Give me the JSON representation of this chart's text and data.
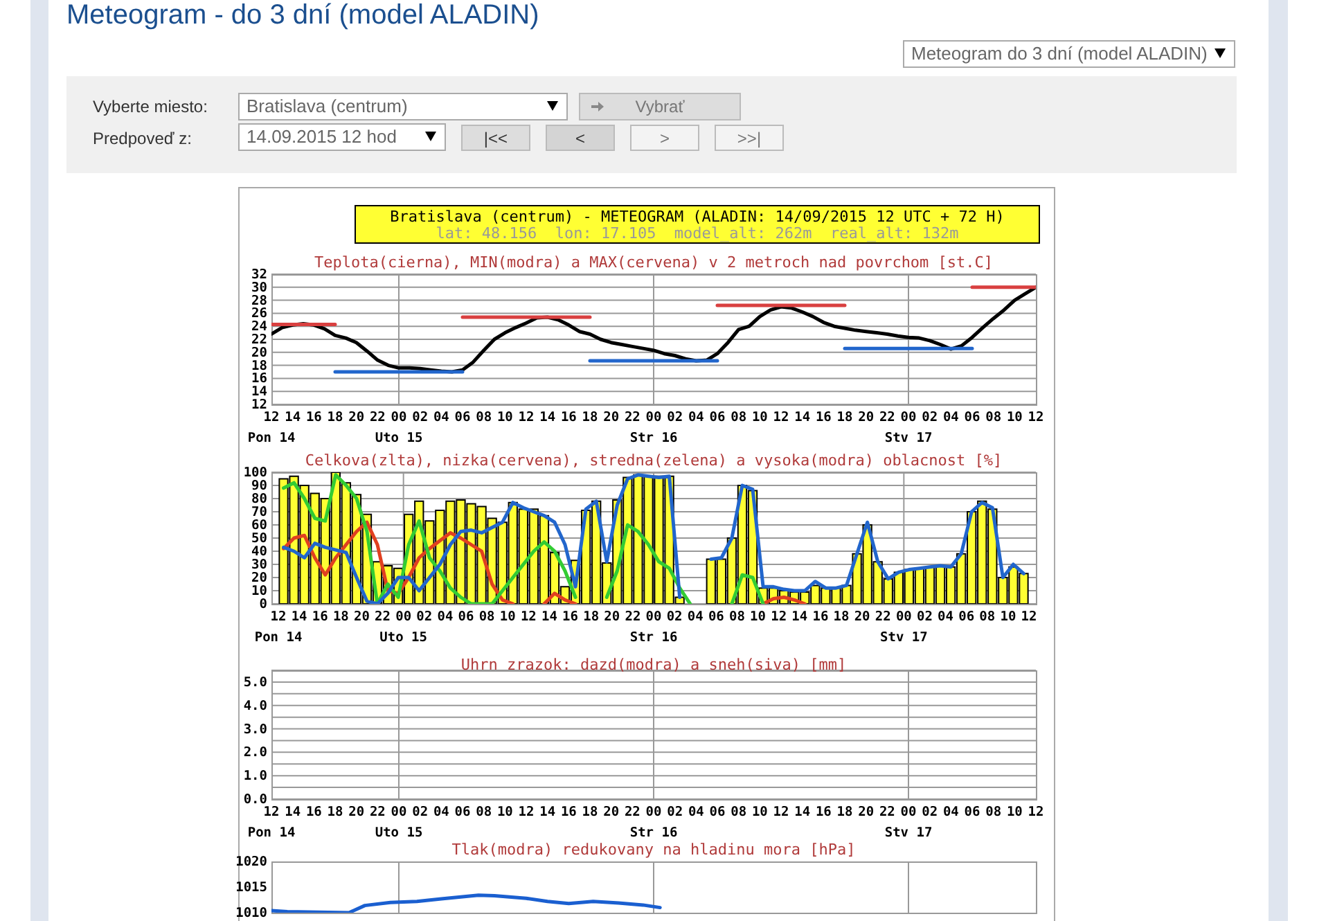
{
  "chart_data": [
    {
      "type": "other",
      "title": "Meteogram - do 3 dní (model ALADIN)",
      "annotations": [
        "Meteogram do 3 dní (model ALADIN)",
        "Vyberte miesto:",
        "Bratislava (centrum)",
        "Vybrať",
        "Predpoveď z:",
        "14.09.2015 12 hod",
        "|<<",
        "<",
        ">",
        ">>|",
        "Bratislava (centrum) - METEOGRAM (ALADIN: 14/09/2015 12 UTC + 72 H)",
        "lat: 48.156  lon: 17.105  model_alt: 262m  real_alt: 132m"
      ]
    },
    {
      "type": "line",
      "title": "Teplota(cierna), MIN(modra) a MAX(cervena) v 2 metroch nad povrchom [st.C]",
      "x": [
        "2015-09-14T12:00",
        "2015-09-14T13:00",
        "2015-09-14T14:00",
        "2015-09-14T15:00",
        "2015-09-14T16:00",
        "2015-09-14T17:00",
        "2015-09-14T18:00",
        "2015-09-14T19:00",
        "2015-09-14T20:00",
        "2015-09-14T21:00",
        "2015-09-14T22:00",
        "2015-09-14T23:00",
        "2015-09-15T00:00",
        "2015-09-15T01:00",
        "2015-09-15T02:00",
        "2015-09-15T03:00",
        "2015-09-15T04:00",
        "2015-09-15T05:00",
        "2015-09-15T06:00",
        "2015-09-15T07:00",
        "2015-09-15T08:00",
        "2015-09-15T09:00",
        "2015-09-15T10:00",
        "2015-09-15T11:00",
        "2015-09-15T12:00",
        "2015-09-15T13:00",
        "2015-09-15T14:00",
        "2015-09-15T15:00",
        "2015-09-15T16:00",
        "2015-09-15T17:00",
        "2015-09-15T18:00",
        "2015-09-15T19:00",
        "2015-09-15T20:00",
        "2015-09-15T21:00",
        "2015-09-15T22:00",
        "2015-09-15T23:00",
        "2015-09-16T00:00",
        "2015-09-16T01:00",
        "2015-09-16T02:00",
        "2015-09-16T03:00",
        "2015-09-16T04:00",
        "2015-09-16T05:00",
        "2015-09-16T06:00",
        "2015-09-16T07:00",
        "2015-09-16T08:00",
        "2015-09-16T09:00",
        "2015-09-16T10:00",
        "2015-09-16T11:00",
        "2015-09-16T12:00",
        "2015-09-16T13:00",
        "2015-09-16T14:00",
        "2015-09-16T15:00",
        "2015-09-16T16:00",
        "2015-09-16T17:00",
        "2015-09-16T18:00",
        "2015-09-16T19:00",
        "2015-09-16T20:00",
        "2015-09-16T21:00",
        "2015-09-16T22:00",
        "2015-09-16T23:00",
        "2015-09-17T00:00",
        "2015-09-17T01:00",
        "2015-09-17T02:00",
        "2015-09-17T03:00",
        "2015-09-17T04:00",
        "2015-09-17T05:00",
        "2015-09-17T06:00",
        "2015-09-17T07:00",
        "2015-09-17T08:00",
        "2015-09-17T09:00",
        "2015-09-17T10:00",
        "2015-09-17T11:00",
        "2015-09-17T12:00"
      ],
      "series": [
        {
          "color": "#000000",
          "values": [
            22.8,
            23.8,
            24.2,
            24.4,
            24.2,
            23.6,
            22.6,
            22.2,
            21.5,
            20.2,
            18.8,
            18.0,
            17.6,
            17.6,
            17.5,
            17.3,
            17.1,
            17.0,
            17.3,
            18.5,
            20.3,
            22.0,
            23.0,
            23.8,
            24.5,
            25.3,
            25.4,
            25.0,
            24.2,
            23.2,
            22.8,
            22.0,
            21.5,
            21.2,
            20.9,
            20.6,
            20.3,
            19.8,
            19.5,
            19.0,
            18.7,
            18.8,
            19.8,
            21.5,
            23.5,
            24.0,
            25.5,
            26.5,
            27.0,
            26.8,
            26.2,
            25.5,
            24.6,
            24.0,
            23.7,
            23.4,
            23.2,
            23.0,
            22.8,
            22.5,
            22.3,
            22.2,
            21.8,
            21.2,
            20.5,
            21.0,
            22.3,
            23.8,
            25.2,
            26.5,
            28.0,
            29.0,
            30.0
          ]
        },
        {
          "color": "#d94040",
          "x": [
            "2015-09-14T12:00",
            "2015-09-14T18:00",
            "2015-09-15T00:00",
            "2015-09-15T06:00",
            "2015-09-15T18:00",
            "2015-09-16T00:00",
            "2015-09-16T06:00",
            "2015-09-16T18:00",
            "2015-09-17T00:00",
            "2015-09-17T06:00",
            "2015-09-17T12:00"
          ],
          "values": [
            24.3,
            24.3,
            null,
            25.4,
            25.4,
            null,
            27.2,
            27.2,
            null,
            30.0,
            30.0
          ]
        },
        {
          "color": "#2266cc",
          "x": [
            "2015-09-14T18:00",
            "2015-09-15T06:00",
            "2015-09-15T12:00",
            "2015-09-15T18:00",
            "2015-09-16T06:00",
            "2015-09-16T12:00",
            "2015-09-16T18:00",
            "2015-09-17T06:00"
          ],
          "values": [
            17.0,
            17.0,
            null,
            18.7,
            18.7,
            null,
            20.6,
            20.6
          ]
        }
      ],
      "xlim": [
        "2015-09-14T12:00",
        "2015-09-17T12:00"
      ],
      "xticks": [
        {
          "value": "2015-09-14T12:00",
          "label": "12\nPon 14"
        },
        {
          "value": "2015-09-14T14:00",
          "label": "14"
        },
        {
          "value": "2015-09-14T16:00",
          "label": "16"
        },
        {
          "value": "2015-09-14T18:00",
          "label": "18"
        },
        {
          "value": "2015-09-14T20:00",
          "label": "20"
        },
        {
          "value": "2015-09-14T22:00",
          "label": "22"
        },
        {
          "value": "2015-09-15T00:00",
          "label": "00\nUto 15"
        },
        {
          "value": "2015-09-15T02:00",
          "label": "02"
        },
        {
          "value": "2015-09-15T04:00",
          "label": "04"
        },
        {
          "value": "2015-09-15T06:00",
          "label": "06"
        },
        {
          "value": "2015-09-15T08:00",
          "label": "08"
        },
        {
          "value": "2015-09-15T10:00",
          "label": "10"
        },
        {
          "value": "2015-09-15T12:00",
          "label": "12"
        },
        {
          "value": "2015-09-15T14:00",
          "label": "14"
        },
        {
          "value": "2015-09-15T16:00",
          "label": "16"
        },
        {
          "value": "2015-09-15T18:00",
          "label": "18"
        },
        {
          "value": "2015-09-15T20:00",
          "label": "20"
        },
        {
          "value": "2015-09-15T22:00",
          "label": "22"
        },
        {
          "value": "2015-09-16T00:00",
          "label": "00\nStr 16"
        },
        {
          "value": "2015-09-16T02:00",
          "label": "02"
        },
        {
          "value": "2015-09-16T04:00",
          "label": "04"
        },
        {
          "value": "2015-09-16T06:00",
          "label": "06"
        },
        {
          "value": "2015-09-16T08:00",
          "label": "08"
        },
        {
          "value": "2015-09-16T10:00",
          "label": "10"
        },
        {
          "value": "2015-09-16T12:00",
          "label": "12"
        },
        {
          "value": "2015-09-16T14:00",
          "label": "14"
        },
        {
          "value": "2015-09-16T16:00",
          "label": "16"
        },
        {
          "value": "2015-09-16T18:00",
          "label": "18"
        },
        {
          "value": "2015-09-16T20:00",
          "label": "20"
        },
        {
          "value": "2015-09-16T22:00",
          "label": "22"
        },
        {
          "value": "2015-09-17T00:00",
          "label": "00\nStv 17"
        },
        {
          "value": "2015-09-17T02:00",
          "label": "02"
        },
        {
          "value": "2015-09-17T04:00",
          "label": "04"
        },
        {
          "value": "2015-09-17T06:00",
          "label": "06"
        },
        {
          "value": "2015-09-17T08:00",
          "label": "08"
        },
        {
          "value": "2015-09-17T10:00",
          "label": "10"
        },
        {
          "value": "2015-09-17T12:00",
          "label": "12"
        }
      ],
      "ylim": [
        12,
        32
      ],
      "yticks": [
        12,
        14,
        16,
        18,
        20,
        22,
        24,
        26,
        28,
        30,
        32
      ],
      "grid": "y",
      "ref_lines": [
        {
          "axis": "x",
          "value": "2015-09-15T00:00",
          "color": "#999999"
        },
        {
          "axis": "x",
          "value": "2015-09-16T00:00",
          "color": "#999999"
        },
        {
          "axis": "x",
          "value": "2015-09-17T00:00",
          "color": "#999999"
        }
      ]
    },
    {
      "type": "bar",
      "title": "Celkova(zlta), nizka(cervena), stredna(zelena) a vysoka(modra) oblacnost [%]",
      "x": [
        "2015-09-14T12:30",
        "2015-09-14T13:30",
        "2015-09-14T14:30",
        "2015-09-14T15:30",
        "2015-09-14T16:30",
        "2015-09-14T17:30",
        "2015-09-14T18:30",
        "2015-09-14T19:30",
        "2015-09-14T20:30",
        "2015-09-14T21:30",
        "2015-09-14T22:30",
        "2015-09-14T23:30",
        "2015-09-15T00:30",
        "2015-09-15T01:30",
        "2015-09-15T02:30",
        "2015-09-15T03:30",
        "2015-09-15T04:30",
        "2015-09-15T05:30",
        "2015-09-15T06:30",
        "2015-09-15T07:30",
        "2015-09-15T08:30",
        "2015-09-15T09:30",
        "2015-09-15T10:30",
        "2015-09-15T11:30",
        "2015-09-15T12:30",
        "2015-09-15T13:30",
        "2015-09-15T14:30",
        "2015-09-15T15:30",
        "2015-09-15T16:30",
        "2015-09-15T17:30",
        "2015-09-15T18:30",
        "2015-09-15T19:30",
        "2015-09-15T20:30",
        "2015-09-15T21:30",
        "2015-09-15T22:30",
        "2015-09-15T23:30",
        "2015-09-16T00:30",
        "2015-09-16T01:30",
        "2015-09-16T02:30",
        "2015-09-16T03:30",
        "2015-09-16T04:30",
        "2015-09-16T05:30",
        "2015-09-16T06:30",
        "2015-09-16T07:30",
        "2015-09-16T08:30",
        "2015-09-16T09:30",
        "2015-09-16T10:30",
        "2015-09-16T11:30",
        "2015-09-16T12:30",
        "2015-09-16T13:30",
        "2015-09-16T14:30",
        "2015-09-16T15:30",
        "2015-09-16T16:30",
        "2015-09-16T17:30",
        "2015-09-16T18:30",
        "2015-09-16T19:30",
        "2015-09-16T20:30",
        "2015-09-16T21:30",
        "2015-09-16T22:30",
        "2015-09-16T23:30",
        "2015-09-17T00:30",
        "2015-09-17T01:30",
        "2015-09-17T02:30",
        "2015-09-17T03:30",
        "2015-09-17T04:30",
        "2015-09-17T05:30",
        "2015-09-17T06:30",
        "2015-09-17T07:30",
        "2015-09-17T08:30",
        "2015-09-17T09:30",
        "2015-09-17T10:30",
        "2015-09-17T11:30"
      ],
      "series": [
        {
          "color": "#ffff33",
          "values": [
            95,
            97,
            90,
            84,
            80,
            100,
            92,
            83,
            68,
            32,
            29,
            27,
            68,
            78,
            63,
            71,
            78,
            79,
            76,
            74,
            65,
            62,
            77,
            72,
            72,
            67,
            39,
            13,
            33,
            71,
            78,
            31,
            79,
            96,
            98,
            97,
            97,
            97,
            5,
            0,
            0,
            34,
            34,
            50,
            90,
            86,
            12,
            12,
            10,
            9,
            9,
            14,
            12,
            12,
            14,
            38,
            60,
            32,
            19,
            24,
            26,
            27,
            28,
            29,
            28,
            38,
            70,
            78,
            72,
            20,
            28,
            23
          ]
        },
        {
          "type": "line",
          "color": "#e04020",
          "values": [
            42,
            50,
            52,
            35,
            22,
            35,
            45,
            55,
            62,
            45,
            10,
            8,
            20,
            35,
            42,
            48,
            54,
            50,
            45,
            40,
            15,
            3,
            0,
            null,
            null,
            0,
            8,
            3,
            0,
            null,
            null,
            null,
            null,
            null,
            null,
            null,
            null,
            null,
            null,
            null,
            null,
            null,
            null,
            null,
            null,
            null,
            0,
            4,
            5,
            3,
            0,
            null,
            null,
            null,
            null,
            null,
            null,
            null,
            null,
            null,
            null,
            null,
            null,
            null,
            null,
            null,
            null,
            null,
            null,
            null,
            null,
            null
          ]
        },
        {
          "type": "line",
          "color": "#33cc33",
          "values": [
            88,
            92,
            80,
            65,
            63,
            98,
            90,
            80,
            55,
            0,
            15,
            5,
            45,
            63,
            35,
            25,
            12,
            5,
            0,
            0,
            0,
            10,
            20,
            30,
            40,
            47,
            40,
            25,
            5,
            null,
            null,
            5,
            25,
            60,
            55,
            45,
            32,
            27,
            12,
            0,
            null,
            null,
            null,
            0,
            22,
            20,
            0,
            null,
            null,
            null,
            null,
            null,
            null,
            null,
            null,
            null,
            null,
            null,
            null,
            null,
            null,
            null,
            null,
            null,
            null,
            null,
            null,
            null,
            null,
            null,
            null,
            null
          ]
        },
        {
          "type": "line",
          "color": "#2266cc",
          "values": [
            43,
            40,
            35,
            46,
            43,
            41,
            39,
            20,
            2,
            0,
            8,
            20,
            20,
            10,
            20,
            30,
            45,
            55,
            56,
            54,
            58,
            62,
            77,
            73,
            70,
            67,
            62,
            45,
            13,
            72,
            78,
            32,
            75,
            95,
            98,
            97,
            96,
            97,
            5,
            null,
            null,
            34,
            35,
            50,
            90,
            87,
            13,
            13,
            11,
            10,
            10,
            17,
            12,
            12,
            14,
            38,
            62,
            32,
            19,
            24,
            26,
            27,
            28,
            29,
            28,
            38,
            70,
            77,
            73,
            20,
            30,
            23
          ]
        }
      ],
      "xlim": [
        "2015-09-14T12:00",
        "2015-09-17T12:00"
      ],
      "xticks": [
        {
          "value": "2015-09-14T12:00",
          "label": "12\nPon 14"
        },
        {
          "value": "2015-09-14T14:00",
          "label": "14"
        },
        {
          "value": "2015-09-14T16:00",
          "label": "16"
        },
        {
          "value": "2015-09-14T18:00",
          "label": "18"
        },
        {
          "value": "2015-09-14T20:00",
          "label": "20"
        },
        {
          "value": "2015-09-14T22:00",
          "label": "22"
        },
        {
          "value": "2015-09-15T00:00",
          "label": "00\nUto 15"
        },
        {
          "value": "2015-09-15T02:00",
          "label": "02"
        },
        {
          "value": "2015-09-15T04:00",
          "label": "04"
        },
        {
          "value": "2015-09-15T06:00",
          "label": "06"
        },
        {
          "value": "2015-09-15T08:00",
          "label": "08"
        },
        {
          "value": "2015-09-15T10:00",
          "label": "10"
        },
        {
          "value": "2015-09-15T12:00",
          "label": "12"
        },
        {
          "value": "2015-09-15T14:00",
          "label": "14"
        },
        {
          "value": "2015-09-15T16:00",
          "label": "16"
        },
        {
          "value": "2015-09-15T18:00",
          "label": "18"
        },
        {
          "value": "2015-09-15T20:00",
          "label": "20"
        },
        {
          "value": "2015-09-15T22:00",
          "label": "22"
        },
        {
          "value": "2015-09-16T00:00",
          "label": "00\nStr 16"
        },
        {
          "value": "2015-09-16T02:00",
          "label": "02"
        },
        {
          "value": "2015-09-16T04:00",
          "label": "04"
        },
        {
          "value": "2015-09-16T06:00",
          "label": "06"
        },
        {
          "value": "2015-09-16T08:00",
          "label": "08"
        },
        {
          "value": "2015-09-16T10:00",
          "label": "10"
        },
        {
          "value": "2015-09-16T12:00",
          "label": "12"
        },
        {
          "value": "2015-09-16T14:00",
          "label": "14"
        },
        {
          "value": "2015-09-16T16:00",
          "label": "16"
        },
        {
          "value": "2015-09-16T18:00",
          "label": "18"
        },
        {
          "value": "2015-09-16T20:00",
          "label": "20"
        },
        {
          "value": "2015-09-16T22:00",
          "label": "22"
        },
        {
          "value": "2015-09-17T00:00",
          "label": "00\nStv 17"
        },
        {
          "value": "2015-09-17T02:00",
          "label": "02"
        },
        {
          "value": "2015-09-17T04:00",
          "label": "04"
        },
        {
          "value": "2015-09-17T06:00",
          "label": "06"
        },
        {
          "value": "2015-09-17T08:00",
          "label": "08"
        },
        {
          "value": "2015-09-17T10:00",
          "label": "10"
        },
        {
          "value": "2015-09-17T12:00",
          "label": "12"
        }
      ],
      "ylim": [
        0,
        100
      ],
      "yticks": [
        0,
        10,
        20,
        30,
        40,
        50,
        60,
        70,
        80,
        90,
        100
      ],
      "grid": "y",
      "ref_lines": [
        {
          "axis": "x",
          "value": "2015-09-15T00:00",
          "color": "#999999"
        },
        {
          "axis": "x",
          "value": "2015-09-16T00:00",
          "color": "#999999"
        },
        {
          "axis": "x",
          "value": "2015-09-17T00:00",
          "color": "#999999"
        }
      ]
    },
    {
      "type": "bar",
      "title": "Uhrn zrazok: dazd(modra) a sneh(siva) [mm]",
      "xlim": [
        "2015-09-14T12:00",
        "2015-09-17T12:00"
      ],
      "xticks": [
        {
          "value": "2015-09-14T12:00",
          "label": "12\nPon 14"
        },
        {
          "value": "2015-09-14T14:00",
          "label": "14"
        },
        {
          "value": "2015-09-14T16:00",
          "label": "16"
        },
        {
          "value": "2015-09-14T18:00",
          "label": "18"
        },
        {
          "value": "2015-09-14T20:00",
          "label": "20"
        },
        {
          "value": "2015-09-14T22:00",
          "label": "22"
        },
        {
          "value": "2015-09-15T00:00",
          "label": "00\nUto 15"
        },
        {
          "value": "2015-09-15T02:00",
          "label": "02"
        },
        {
          "value": "2015-09-15T04:00",
          "label": "04"
        },
        {
          "value": "2015-09-15T06:00",
          "label": "06"
        },
        {
          "value": "2015-09-15T08:00",
          "label": "08"
        },
        {
          "value": "2015-09-15T10:00",
          "label": "10"
        },
        {
          "value": "2015-09-15T12:00",
          "label": "12"
        },
        {
          "value": "2015-09-15T14:00",
          "label": "14"
        },
        {
          "value": "2015-09-15T16:00",
          "label": "16"
        },
        {
          "value": "2015-09-15T18:00",
          "label": "18"
        },
        {
          "value": "2015-09-15T20:00",
          "label": "20"
        },
        {
          "value": "2015-09-15T22:00",
          "label": "22"
        },
        {
          "value": "2015-09-16T00:00",
          "label": "00\nStr 16"
        },
        {
          "value": "2015-09-16T02:00",
          "label": "02"
        },
        {
          "value": "2015-09-16T04:00",
          "label": "04"
        },
        {
          "value": "2015-09-16T06:00",
          "label": "06"
        },
        {
          "value": "2015-09-16T08:00",
          "label": "08"
        },
        {
          "value": "2015-09-16T10:00",
          "label": "10"
        },
        {
          "value": "2015-09-16T12:00",
          "label": "12"
        },
        {
          "value": "2015-09-16T14:00",
          "label": "14"
        },
        {
          "value": "2015-09-16T16:00",
          "label": "16"
        },
        {
          "value": "2015-09-16T18:00",
          "label": "18"
        },
        {
          "value": "2015-09-16T20:00",
          "label": "20"
        },
        {
          "value": "2015-09-16T22:00",
          "label": "22"
        },
        {
          "value": "2015-09-17T00:00",
          "label": "00\nStv 17"
        },
        {
          "value": "2015-09-17T02:00",
          "label": "02"
        },
        {
          "value": "2015-09-17T04:00",
          "label": "04"
        },
        {
          "value": "2015-09-17T06:00",
          "label": "06"
        },
        {
          "value": "2015-09-17T08:00",
          "label": "08"
        },
        {
          "value": "2015-09-17T10:00",
          "label": "10"
        },
        {
          "value": "2015-09-17T12:00",
          "label": "12"
        }
      ],
      "ylim": [
        0,
        5.5
      ],
      "yticks": [
        {
          "value": 0,
          "label": "0.0"
        },
        {
          "value": 0.5,
          "label": null
        },
        {
          "value": 1,
          "label": "1.0"
        },
        {
          "value": 1.5,
          "label": null
        },
        {
          "value": 2,
          "label": "2.0"
        },
        {
          "value": 2.5,
          "label": null
        },
        {
          "value": 3,
          "label": "3.0"
        },
        {
          "value": 3.5,
          "label": null
        },
        {
          "value": 4,
          "label": "4.0"
        },
        {
          "value": 4.5,
          "label": null
        },
        {
          "value": 5,
          "label": "5.0"
        },
        {
          "value": 5.5,
          "label": null
        }
      ],
      "grid": "y",
      "ref_lines": [
        {
          "axis": "x",
          "value": "2015-09-15T00:00",
          "color": "#999999"
        },
        {
          "axis": "x",
          "value": "2015-09-16T00:00",
          "color": "#999999"
        },
        {
          "axis": "x",
          "value": "2015-09-17T00:00",
          "color": "#999999"
        }
      ]
    },
    {
      "type": "line",
      "title": "Tlak(modra) redukovany na hladinu mora [hPa]",
      "x": [
        "2015-09-14T12:00",
        "2015-09-14T13:30",
        "2015-09-14T19:18",
        "2015-09-14T20:48",
        "2015-09-14T23:12",
        "2015-09-15T01:42",
        "2015-09-15T04:00",
        "2015-09-15T07:30",
        "2015-09-15T09:00",
        "2015-09-15T12:00",
        "2015-09-15T14:00",
        "2015-09-15T16:00",
        "2015-09-15T18:18",
        "2015-09-15T20:42",
        "2015-09-15T23:00",
        "2015-09-16T00:36"
      ],
      "series": [
        {
          "color": "#1a5fd0",
          "values": [
            1010.4,
            1010.2,
            1010.0,
            1011.4,
            1012.0,
            1012.2,
            1012.7,
            1013.4,
            1013.3,
            1012.8,
            1012.2,
            1011.8,
            1012.2,
            1011.9,
            1011.5,
            1011.0
          ]
        }
      ],
      "xlim": [
        "2015-09-14T12:00",
        "2015-09-17T12:00"
      ],
      "xticks": [
        {
          "value": "2015-09-15T00:00",
          "label": null
        },
        {
          "value": "2015-09-16T00:00",
          "label": null
        },
        {
          "value": "2015-09-17T00:00",
          "label": null
        }
      ],
      "grid": "x",
      "ylim": [
        1010,
        1020
      ],
      "yticks": [
        1010,
        1015,
        1020
      ],
      "tick_labels": "y"
    }
  ]
}
